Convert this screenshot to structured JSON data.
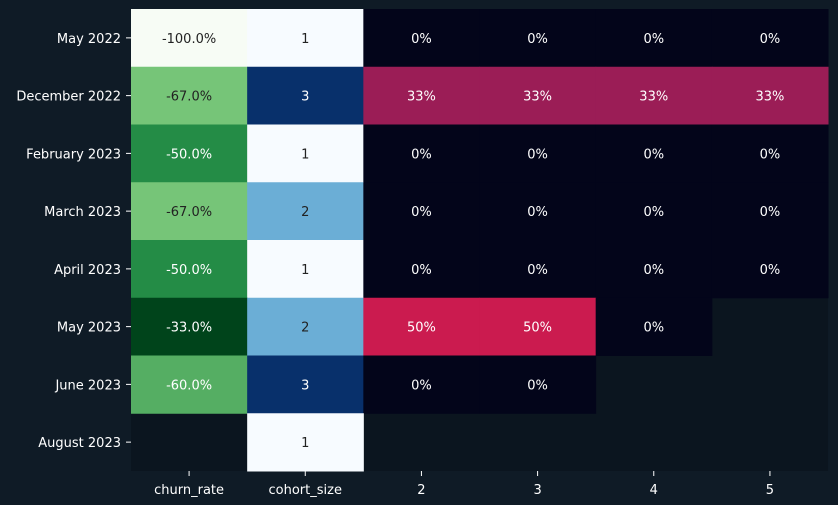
{
  "colors": {
    "background": "#0f1b26",
    "empty_cell": "#0b151f",
    "label_text": "#ffffff",
    "dark_cell_text": "#222222"
  },
  "chart_data": {
    "type": "heatmap",
    "title": "",
    "xlabel": "",
    "ylabel": "",
    "columns": [
      "churn_rate",
      "cohort_size",
      "2",
      "3",
      "4",
      "5"
    ],
    "rows": [
      "May 2022",
      "December 2022",
      "February 2023",
      "March 2023",
      "April 2023",
      "May 2023",
      "June 2023",
      "August 2023"
    ],
    "cells": [
      [
        "-100.0%",
        "1",
        "0%",
        "0%",
        "0%",
        "0%"
      ],
      [
        "-67.0%",
        "3",
        "33%",
        "33%",
        "33%",
        "33%"
      ],
      [
        "-50.0%",
        "1",
        "0%",
        "0%",
        "0%",
        "0%"
      ],
      [
        "-67.0%",
        "2",
        "0%",
        "0%",
        "0%",
        "0%"
      ],
      [
        "-50.0%",
        "1",
        "0%",
        "0%",
        "0%",
        "0%"
      ],
      [
        "-33.0%",
        "2",
        "50%",
        "50%",
        "0%",
        null
      ],
      [
        "-60.0%",
        "3",
        "0%",
        "0%",
        null,
        null
      ],
      [
        null,
        "1",
        null,
        null,
        null,
        null
      ]
    ],
    "churn_rate": [
      -100.0,
      -67.0,
      -50.0,
      -67.0,
      -50.0,
      -33.0,
      -60.0,
      null
    ],
    "cohort_size": [
      1,
      3,
      1,
      2,
      1,
      2,
      3,
      1
    ],
    "retention_pct": [
      [
        0,
        0,
        0,
        0
      ],
      [
        33,
        33,
        33,
        33
      ],
      [
        0,
        0,
        0,
        0
      ],
      [
        0,
        0,
        0,
        0
      ],
      [
        0,
        0,
        0,
        0
      ],
      [
        50,
        50,
        0,
        null
      ],
      [
        0,
        0,
        null,
        null
      ],
      [
        null,
        null,
        null,
        null
      ]
    ],
    "colormaps": {
      "churn_rate": {
        "min": -100,
        "max": -33,
        "stops": [
          "#f7fcf5",
          "#c7e9c0",
          "#74c476",
          "#238b45",
          "#00441b"
        ]
      },
      "cohort_size": {
        "min": 1,
        "max": 3,
        "stops": [
          "#f7fbff",
          "#6baed6",
          "#08306b"
        ]
      },
      "retention": {
        "min": 0,
        "max": 50,
        "stops": [
          "#03051a",
          "#841e5a",
          "#cb1b4f"
        ]
      }
    }
  }
}
